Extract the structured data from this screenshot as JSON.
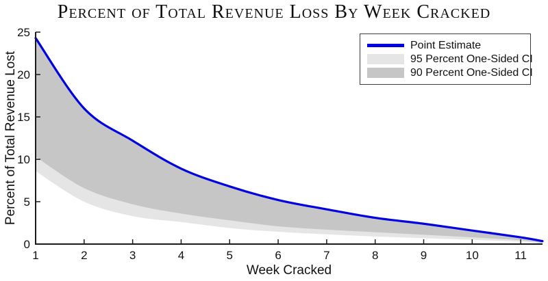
{
  "figure": {
    "title": "Percent of Total Revenue Loss By Week Cracked"
  },
  "chart_data": {
    "type": "area",
    "title": "Percent of Total Revenue Loss By Week Cracked",
    "xlabel": "Week Cracked",
    "ylabel": "Percent of Total Revenue Lost",
    "xlim": [
      1,
      11.45
    ],
    "ylim": [
      0,
      25
    ],
    "x_ticks": [
      1,
      2,
      3,
      4,
      5,
      6,
      7,
      8,
      9,
      10,
      11
    ],
    "y_ticks": [
      0,
      5,
      10,
      15,
      20,
      25
    ],
    "grid": false,
    "legend_position": "top-right",
    "x": [
      1,
      2,
      3,
      4,
      5,
      6,
      7,
      8,
      9,
      10,
      11,
      11.45
    ],
    "series": [
      {
        "name": "Point Estimate",
        "kind": "line",
        "color": "#0000e0",
        "values": [
          24.3,
          16.0,
          12.2,
          8.9,
          6.8,
          5.2,
          4.1,
          3.1,
          2.4,
          1.6,
          0.8,
          0.35
        ]
      },
      {
        "name": "95 Percent One-Sided CI",
        "kind": "band",
        "color": "#e5e5e5",
        "lower": [
          8.6,
          5.0,
          3.3,
          2.6,
          1.9,
          1.45,
          1.15,
          0.9,
          0.7,
          0.5,
          0.28,
          0.05
        ]
      },
      {
        "name": "90 Percent One-Sided CI",
        "kind": "band",
        "color": "#c6c6c6",
        "lower": [
          10.3,
          6.6,
          4.7,
          3.6,
          2.8,
          2.1,
          1.7,
          1.4,
          1.1,
          0.8,
          0.45,
          0.15
        ]
      }
    ],
    "colors": {
      "axis": "#1a1a1a",
      "tick_text": "#111111",
      "background": "#ffffff",
      "legend_border": "#3c3c3c"
    }
  }
}
